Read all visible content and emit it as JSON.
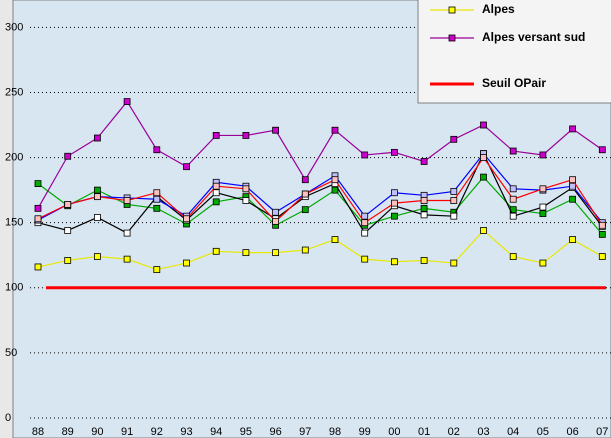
{
  "chart_data": {
    "type": "line",
    "categories": [
      "88",
      "89",
      "90",
      "91",
      "92",
      "93",
      "94",
      "95",
      "96",
      "97",
      "98",
      "99",
      "00",
      "01",
      "02",
      "03",
      "04",
      "05",
      "06",
      "07"
    ],
    "ylim": [
      0,
      321
    ],
    "yticks": [
      0,
      50,
      100,
      150,
      200,
      250,
      300
    ],
    "grid": true,
    "series": [
      {
        "color": "#00aa00",
        "marker_color": "#00aa00",
        "values": [
          180,
          163,
          175,
          164,
          161,
          149,
          166,
          170,
          148,
          160,
          175,
          148,
          155,
          161,
          158,
          185,
          160,
          157,
          168,
          141
        ]
      },
      {
        "color": "#000000",
        "marker_color": "#ffffff",
        "values": [
          150,
          144,
          154,
          142,
          170,
          152,
          173,
          167,
          153,
          170,
          180,
          142,
          163,
          156,
          155,
          203,
          155,
          162,
          177,
          147
        ]
      },
      {
        "color": "#0000ff",
        "marker_color": "#c0c0ff",
        "values": [
          152,
          164,
          170,
          169,
          168,
          155,
          181,
          178,
          158,
          172,
          186,
          155,
          173,
          171,
          174,
          203,
          176,
          175,
          178,
          150
        ]
      },
      {
        "color": "#ff0000",
        "marker_color": "#ffc0c0",
        "values": [
          153,
          164,
          170,
          167,
          173,
          153,
          178,
          176,
          151,
          172,
          183,
          150,
          165,
          167,
          167,
          200,
          168,
          176,
          183,
          148
        ]
      },
      {
        "name": "Alpes",
        "color": "#e8e800",
        "marker_color": "#ffff00",
        "values": [
          116,
          121,
          124,
          122,
          114,
          119,
          128,
          127,
          127,
          129,
          137,
          122,
          120,
          121,
          119,
          144,
          124,
          119,
          137,
          124
        ]
      },
      {
        "name": "Alpes versant sud",
        "color": "#990099",
        "marker_color": "#cc00cc",
        "values": [
          161,
          201,
          215,
          243,
          206,
          193,
          217,
          217,
          221,
          183,
          221,
          202,
          204,
          197,
          214,
          225,
          205,
          202,
          222,
          206
        ]
      }
    ],
    "threshold": {
      "name": "Seuil OPair",
      "value": 100,
      "color": "#ff0000"
    }
  }
}
